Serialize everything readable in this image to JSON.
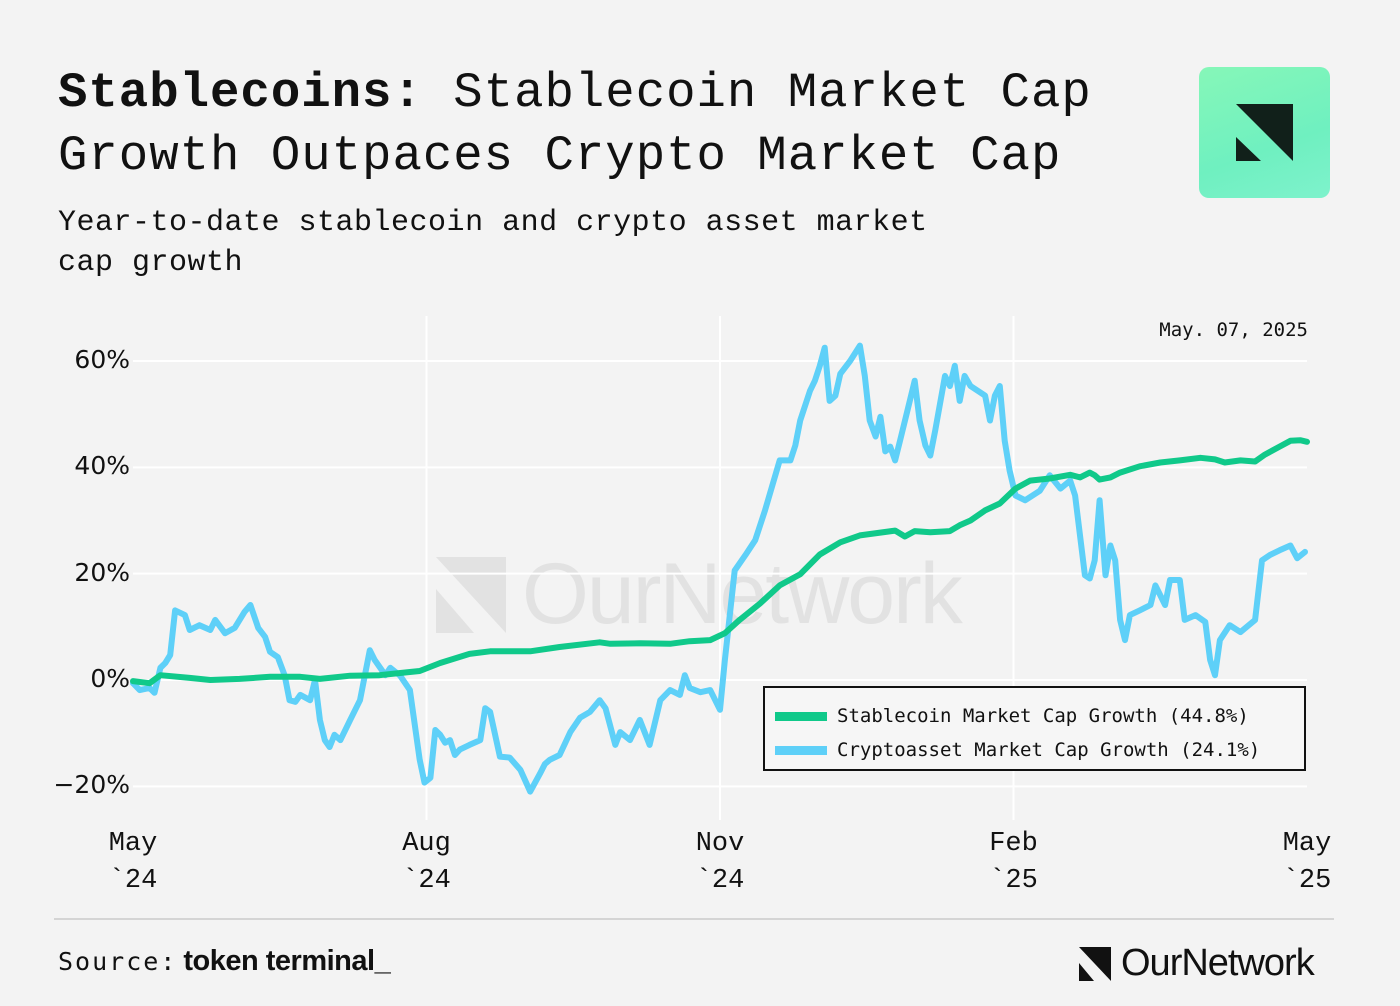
{
  "header": {
    "title_bold": "Stablecoins:",
    "title_rest_line1": "Stablecoin Market Cap",
    "title_line2": "Growth Outpaces Crypto Market Cap",
    "subtitle": "Year-to-date stablecoin and crypto asset market cap growth",
    "logo_icon": "ournetwork-logo-icon"
  },
  "colors": {
    "background": "#f3f3f3",
    "stablecoin": "#10c98a",
    "cryptoasset": "#5ed0f8",
    "grid": "#ffffff",
    "text": "#111111"
  },
  "footer": {
    "source_label": "Source:",
    "source_name": "token terminal_",
    "brand_name": "OurNetwork"
  },
  "watermark": {
    "text": "OurNetwork"
  },
  "chart_data": {
    "type": "line",
    "title": "Stablecoins: Stablecoin Market Cap Growth Outpaces Crypto Market Cap",
    "subtitle": "Year-to-date stablecoin and crypto asset market cap growth",
    "annotation": "May. 07, 2025",
    "xlabel": "",
    "ylabel": "",
    "x_units": "months since May 2024",
    "xlim": [
      0,
      12
    ],
    "ylim": [
      -20,
      60
    ],
    "grid": true,
    "legend_position": "bottom-right",
    "x_ticks": [
      {
        "value": 0,
        "label_line1": "May",
        "label_line2": "`24"
      },
      {
        "value": 3,
        "label_line1": "Aug",
        "label_line2": "`24"
      },
      {
        "value": 6,
        "label_line1": "Nov",
        "label_line2": "`24"
      },
      {
        "value": 9,
        "label_line1": "Feb",
        "label_line2": "`25"
      },
      {
        "value": 12,
        "label_line1": "May",
        "label_line2": "`25"
      }
    ],
    "y_ticks": [
      {
        "value": 60,
        "label": "60%"
      },
      {
        "value": 40,
        "label": "40%"
      },
      {
        "value": 20,
        "label": "20%"
      },
      {
        "value": 0,
        "label": "0%"
      },
      {
        "value": -20,
        "label": "−20%"
      }
    ],
    "series": [
      {
        "name": "Stablecoin Market Cap Growth (44.8%)",
        "color": "#10c98a",
        "x": [
          0.0,
          0.17,
          0.28,
          0.58,
          0.79,
          1.09,
          1.4,
          1.71,
          1.91,
          2.22,
          2.52,
          2.83,
          2.93,
          3.14,
          3.44,
          3.65,
          4.06,
          4.36,
          4.77,
          4.88,
          5.18,
          5.49,
          5.69,
          5.9,
          6.05,
          6.2,
          6.41,
          6.61,
          6.82,
          7.02,
          7.23,
          7.43,
          7.79,
          7.89,
          7.99,
          8.15,
          8.35,
          8.45,
          8.56,
          8.71,
          8.86,
          9.02,
          9.17,
          9.37,
          9.58,
          9.68,
          9.78,
          9.83,
          9.88,
          9.99,
          10.09,
          10.29,
          10.5,
          10.7,
          10.91,
          11.06,
          11.16,
          11.32,
          11.47,
          11.57,
          11.72,
          11.83,
          11.93,
          12.0
        ],
        "y": [
          -0.2,
          -0.6,
          0.9,
          0.4,
          0.0,
          0.2,
          0.6,
          0.6,
          0.2,
          0.8,
          0.9,
          1.5,
          1.7,
          3.2,
          4.9,
          5.4,
          5.4,
          6.2,
          7.1,
          6.8,
          6.9,
          6.8,
          7.3,
          7.5,
          8.8,
          11.3,
          14.4,
          17.8,
          19.9,
          23.6,
          25.9,
          27.2,
          28.1,
          27.0,
          28.0,
          27.8,
          28.0,
          29.1,
          30.0,
          31.9,
          33.2,
          36.0,
          37.5,
          37.9,
          38.6,
          38.1,
          39.0,
          38.5,
          37.7,
          38.1,
          39.0,
          40.2,
          40.9,
          41.3,
          41.8,
          41.5,
          40.9,
          41.3,
          41.1,
          42.4,
          43.9,
          45.0,
          45.1,
          44.8
        ]
      },
      {
        "name": "Cryptoasset Market Cap Growth (24.1%)",
        "color": "#5ed0f8",
        "x": [
          0.0,
          0.07,
          0.17,
          0.22,
          0.28,
          0.33,
          0.38,
          0.43,
          0.53,
          0.58,
          0.68,
          0.79,
          0.84,
          0.94,
          1.04,
          1.14,
          1.2,
          1.28,
          1.35,
          1.4,
          1.48,
          1.55,
          1.6,
          1.66,
          1.71,
          1.81,
          1.86,
          1.91,
          1.96,
          2.01,
          2.06,
          2.12,
          2.22,
          2.32,
          2.42,
          2.47,
          2.58,
          2.63,
          2.73,
          2.83,
          2.93,
          2.98,
          3.04,
          3.09,
          3.14,
          3.19,
          3.24,
          3.29,
          3.34,
          3.44,
          3.55,
          3.6,
          3.65,
          3.75,
          3.85,
          3.96,
          4.06,
          4.16,
          4.21,
          4.26,
          4.36,
          4.47,
          4.57,
          4.67,
          4.77,
          4.83,
          4.93,
          4.98,
          5.08,
          5.18,
          5.28,
          5.39,
          5.49,
          5.59,
          5.64,
          5.69,
          5.8,
          5.9,
          6.0,
          6.05,
          6.15,
          6.26,
          6.36,
          6.46,
          6.61,
          6.72,
          6.77,
          6.82,
          6.92,
          6.97,
          7.02,
          7.07,
          7.12,
          7.18,
          7.23,
          7.33,
          7.43,
          7.48,
          7.53,
          7.59,
          7.64,
          7.69,
          7.74,
          7.79,
          7.84,
          7.94,
          7.99,
          8.04,
          8.1,
          8.15,
          8.2,
          8.3,
          8.35,
          8.4,
          8.45,
          8.5,
          8.56,
          8.71,
          8.76,
          8.81,
          8.86,
          8.91,
          8.96,
          9.02,
          9.12,
          9.27,
          9.37,
          9.48,
          9.58,
          9.63,
          9.73,
          9.78,
          9.83,
          9.88,
          9.94,
          9.99,
          10.04,
          10.09,
          10.14,
          10.19,
          10.29,
          10.4,
          10.45,
          10.55,
          10.6,
          10.7,
          10.75,
          10.86,
          10.96,
          11.01,
          11.06,
          11.11,
          11.21,
          11.32,
          11.47,
          11.54,
          11.62,
          11.72,
          11.83,
          11.9,
          11.98
        ],
        "y": [
          -0.6,
          -1.9,
          -1.5,
          -2.4,
          2.3,
          3.2,
          4.7,
          13.1,
          12.2,
          9.4,
          10.3,
          9.4,
          11.3,
          8.8,
          9.8,
          12.8,
          14.1,
          9.8,
          8.1,
          5.3,
          4.3,
          0.9,
          -3.8,
          -4.1,
          -2.8,
          -3.8,
          0.0,
          -7.5,
          -11.3,
          -12.6,
          -10.3,
          -11.3,
          -7.5,
          -3.8,
          5.6,
          3.8,
          0.9,
          2.3,
          0.8,
          -1.9,
          -15.0,
          -19.3,
          -18.4,
          -9.4,
          -10.3,
          -11.8,
          -11.3,
          -14.1,
          -13.1,
          -12.2,
          -11.3,
          -5.3,
          -6.0,
          -14.4,
          -14.6,
          -16.9,
          -21.0,
          -17.6,
          -15.8,
          -15.0,
          -14.1,
          -9.8,
          -7.1,
          -6.0,
          -3.8,
          -5.3,
          -12.2,
          -9.8,
          -11.3,
          -7.5,
          -12.2,
          -3.8,
          -1.9,
          -2.8,
          0.9,
          -1.5,
          -2.3,
          -1.9,
          -5.6,
          3.8,
          20.6,
          23.5,
          26.3,
          31.9,
          41.3,
          41.3,
          44.1,
          48.8,
          54.4,
          56.3,
          59.1,
          62.5,
          52.5,
          53.5,
          57.6,
          60.0,
          62.9,
          57.2,
          48.8,
          45.8,
          49.5,
          43.0,
          43.9,
          41.3,
          45.0,
          52.5,
          56.3,
          48.8,
          44.1,
          42.2,
          46.9,
          57.2,
          55.3,
          59.1,
          52.5,
          57.2,
          55.3,
          53.5,
          48.8,
          53.5,
          55.3,
          45.0,
          39.4,
          34.7,
          33.8,
          35.6,
          38.5,
          36.0,
          37.5,
          34.7,
          19.7,
          19.1,
          22.5,
          33.8,
          19.7,
          25.3,
          22.5,
          11.3,
          7.5,
          12.2,
          13.1,
          14.1,
          17.8,
          14.1,
          18.8,
          18.8,
          11.3,
          12.2,
          10.9,
          3.8,
          0.9,
          7.5,
          10.3,
          9.0,
          11.3,
          22.5,
          23.5,
          24.4,
          25.3,
          22.9,
          24.1
        ]
      }
    ]
  }
}
